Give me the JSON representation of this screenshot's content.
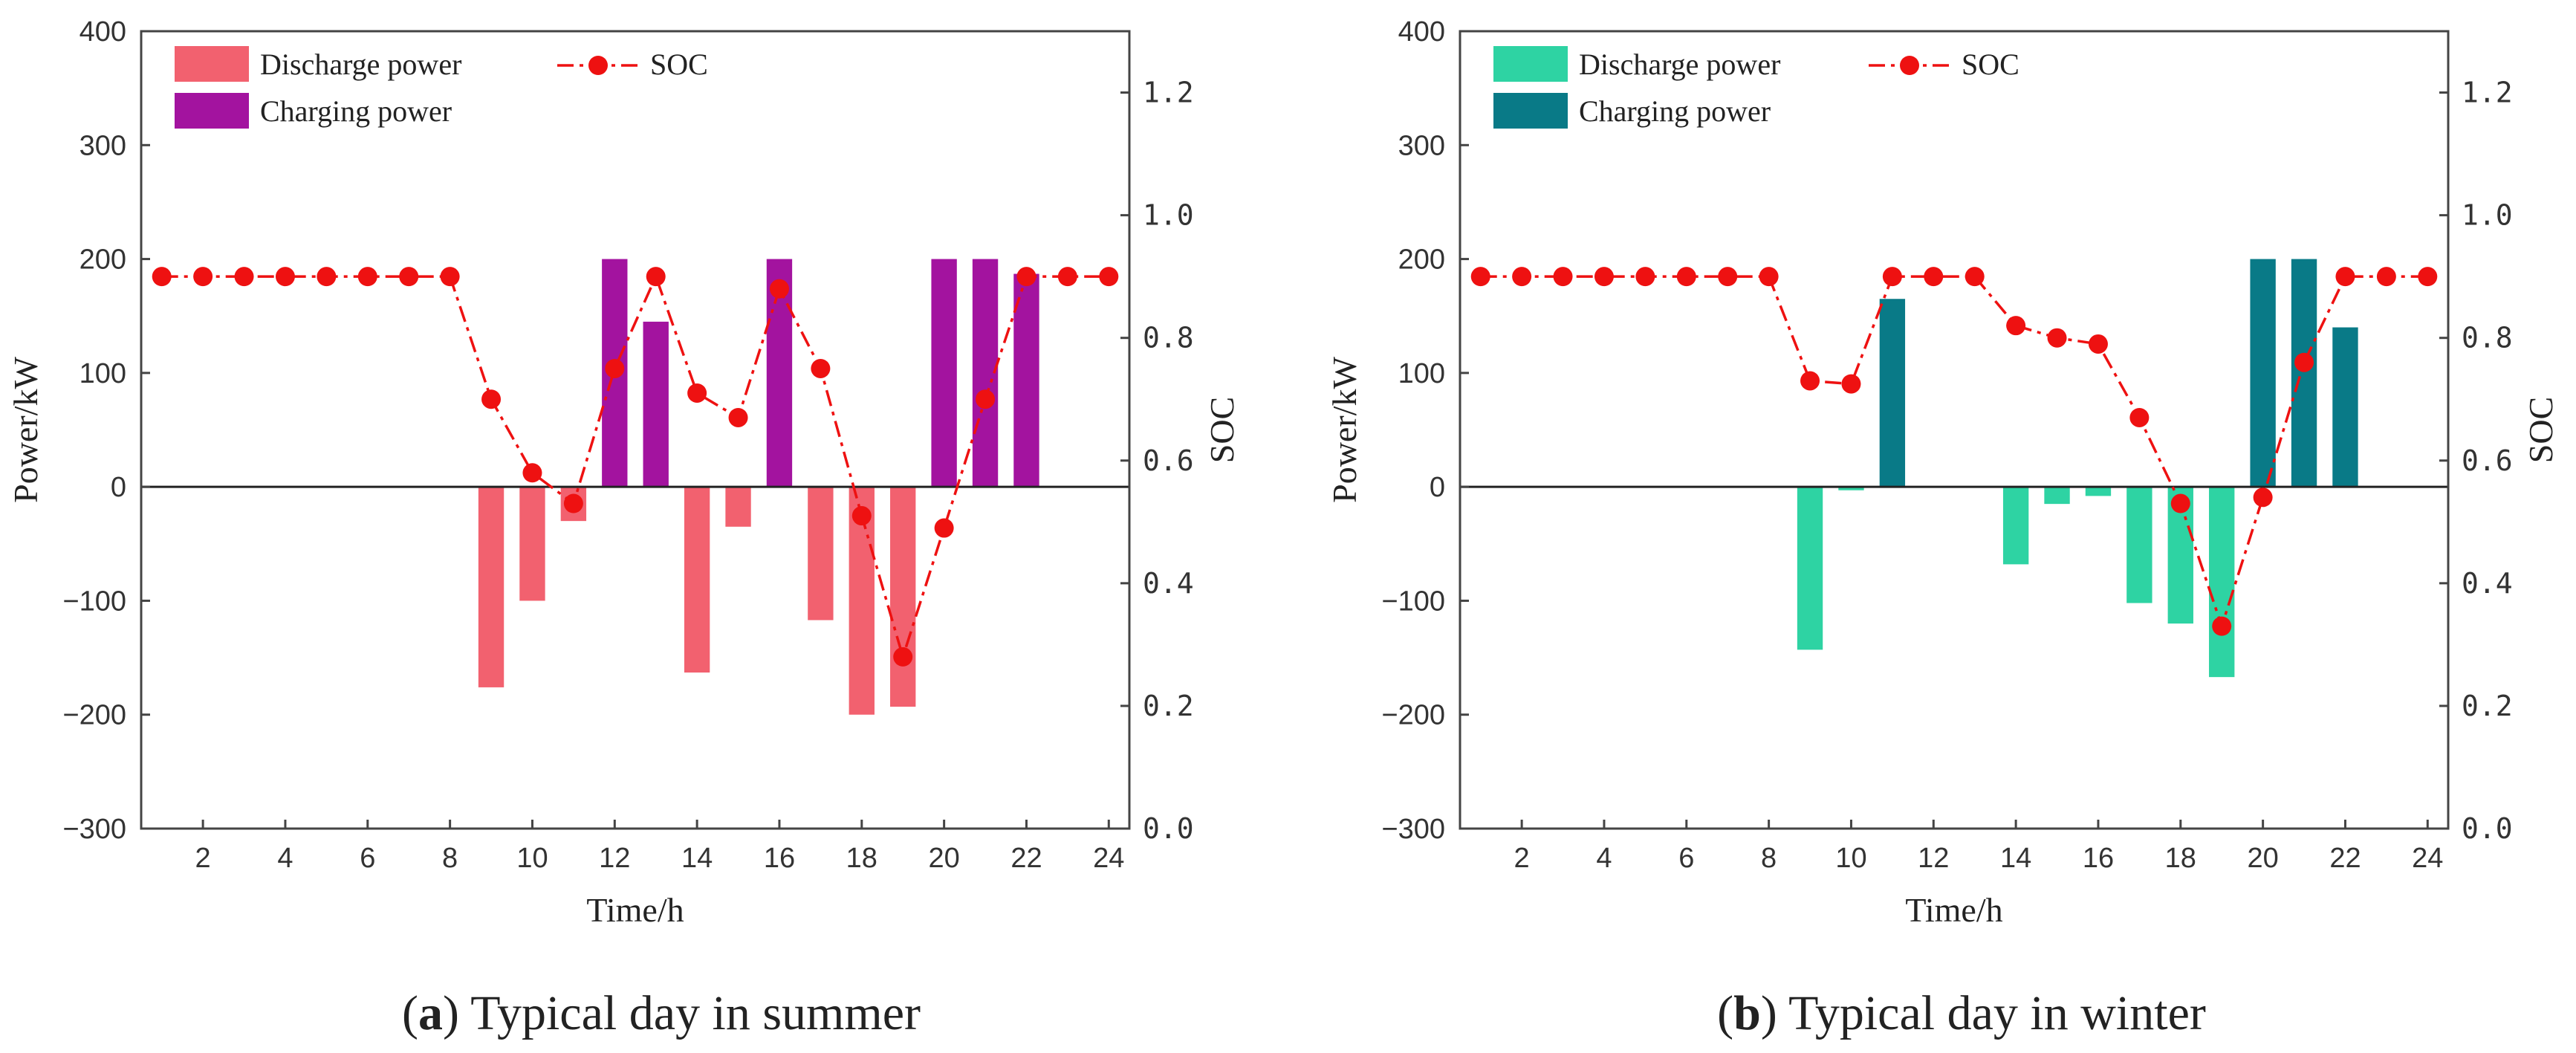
{
  "chart_data": [
    {
      "id": "summer",
      "type": "bar+line",
      "label": "a",
      "title": "Typical day in summer",
      "xlabel": "Time/h",
      "ylabel": "Power/kW",
      "y2label": "SOC",
      "xlim": [
        0.5,
        24.5
      ],
      "ylim": [
        -300,
        400
      ],
      "y2lim": [
        0.0,
        1.3
      ],
      "xticks": [
        "2",
        "4",
        "6",
        "8",
        "10",
        "12",
        "14",
        "16",
        "18",
        "20",
        "22",
        "24"
      ],
      "yticks": [
        "400",
        "300",
        "200",
        "100",
        "0",
        "−100",
        "−200",
        "−300"
      ],
      "y2ticks": [
        "1.2",
        "1.0",
        "0.8",
        "0.6",
        "0.4",
        "0.2",
        "0.0"
      ],
      "legend": {
        "discharge": "Discharge power",
        "charging": "Charging power",
        "soc": "SOC"
      },
      "colors": {
        "discharge": "#f2616f",
        "charging": "#a3139f",
        "soc": "#ee1111"
      },
      "hours": [
        1,
        2,
        3,
        4,
        5,
        6,
        7,
        8,
        9,
        10,
        11,
        12,
        13,
        14,
        15,
        16,
        17,
        18,
        19,
        20,
        21,
        22,
        23,
        24
      ],
      "discharge": [
        0,
        0,
        0,
        0,
        0,
        0,
        0,
        0,
        -176,
        -100,
        -30,
        0,
        0,
        -163,
        -35,
        0,
        -117,
        -200,
        -193,
        0,
        0,
        0,
        0,
        0
      ],
      "charging": [
        0,
        0,
        0,
        0,
        0,
        0,
        0,
        0,
        0,
        0,
        0,
        200,
        145,
        0,
        0,
        200,
        0,
        0,
        0,
        200,
        200,
        187,
        0,
        0
      ],
      "soc": [
        0.9,
        0.9,
        0.9,
        0.9,
        0.9,
        0.9,
        0.9,
        0.9,
        0.7,
        0.58,
        0.53,
        0.75,
        0.9,
        0.71,
        0.67,
        0.88,
        0.75,
        0.51,
        0.28,
        0.49,
        0.7,
        0.9,
        0.9,
        0.9
      ]
    },
    {
      "id": "winter",
      "type": "bar+line",
      "label": "b",
      "title": "Typical day in winter",
      "xlabel": "Time/h",
      "ylabel": "Power/kW",
      "y2label": "SOC",
      "xlim": [
        0.5,
        24.5
      ],
      "ylim": [
        -300,
        400
      ],
      "y2lim": [
        0.0,
        1.3
      ],
      "xticks": [
        "2",
        "4",
        "6",
        "8",
        "10",
        "12",
        "14",
        "16",
        "18",
        "20",
        "22",
        "24"
      ],
      "yticks": [
        "400",
        "300",
        "200",
        "100",
        "0",
        "−100",
        "−200",
        "−300"
      ],
      "y2ticks": [
        "1.2",
        "1.0",
        "0.8",
        "0.6",
        "0.4",
        "0.2",
        "0.0"
      ],
      "legend": {
        "discharge": "Discharge power",
        "charging": "Charging power",
        "soc": "SOC"
      },
      "colors": {
        "discharge": "#2ed3a3",
        "charging": "#097a87",
        "soc": "#ee1111"
      },
      "hours": [
        1,
        2,
        3,
        4,
        5,
        6,
        7,
        8,
        9,
        10,
        11,
        12,
        13,
        14,
        15,
        16,
        17,
        18,
        19,
        20,
        21,
        22,
        23,
        24
      ],
      "discharge": [
        0,
        0,
        0,
        0,
        0,
        0,
        0,
        0,
        -143,
        -3,
        0,
        0,
        0,
        -68,
        -15,
        -8,
        -102,
        -120,
        -167,
        0,
        0,
        0,
        0,
        0
      ],
      "charging": [
        0,
        0,
        0,
        0,
        0,
        0,
        0,
        0,
        0,
        0,
        165,
        0,
        0,
        0,
        0,
        0,
        0,
        0,
        0,
        200,
        200,
        140,
        0,
        0
      ],
      "soc": [
        0.9,
        0.9,
        0.9,
        0.9,
        0.9,
        0.9,
        0.9,
        0.9,
        0.73,
        0.725,
        0.9,
        0.9,
        0.9,
        0.82,
        0.8,
        0.79,
        0.67,
        0.53,
        0.33,
        0.54,
        0.76,
        0.9,
        0.9,
        0.9
      ]
    }
  ]
}
